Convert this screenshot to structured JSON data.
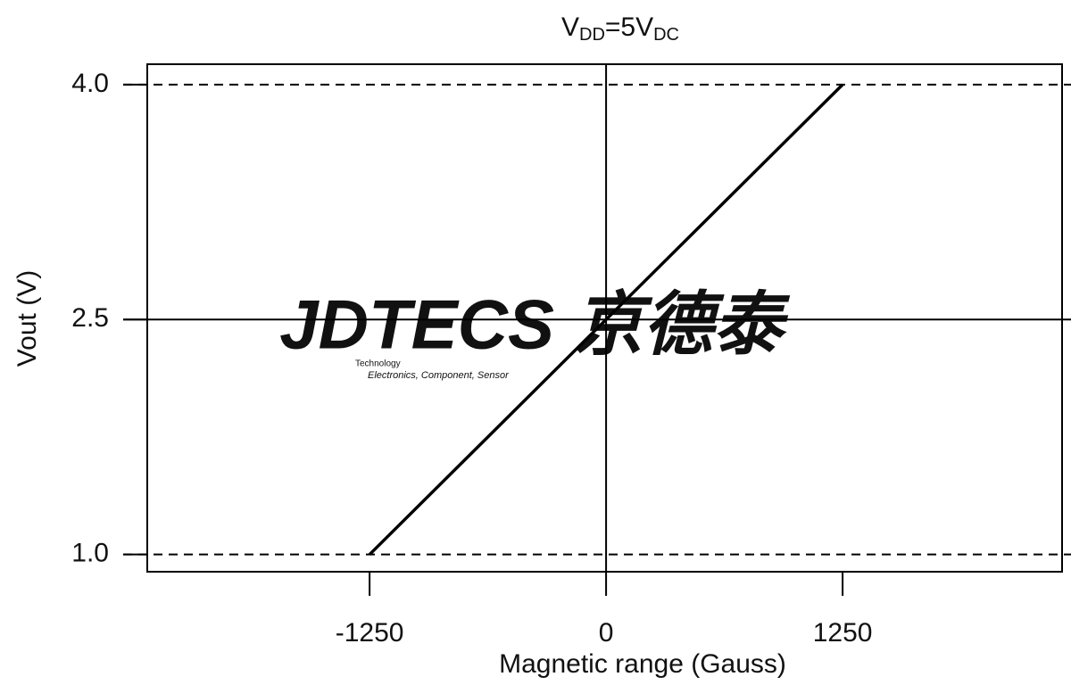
{
  "chart_data": {
    "type": "line",
    "title": [
      {
        "text": "V",
        "sub": false
      },
      {
        "text": "DD",
        "sub": true
      },
      {
        "text": "=5V",
        "sub": false
      },
      {
        "text": "DC",
        "sub": true
      }
    ],
    "x_label": "Magnetic range (Gauss)",
    "y_label": "Vout (V)",
    "x": [
      -1250,
      1250
    ],
    "series": [
      {
        "values": [
          1.0,
          4.0
        ],
        "color": "#000000"
      }
    ],
    "xlim": [
      -2425,
      2410
    ],
    "ylim": [
      0.89,
      4.13
    ],
    "xticks": [
      -1250,
      0,
      1250
    ],
    "yticks": [
      {
        "value": 1.0,
        "label": "1.0"
      },
      {
        "value": 2.5,
        "label": "2.5"
      },
      {
        "value": 4.0,
        "label": "4.0"
      }
    ],
    "reference_lines": {
      "y": [
        {
          "value": 1.0,
          "dashed": true
        },
        {
          "value": 2.5,
          "dashed": false
        },
        {
          "value": 4.0,
          "dashed": true
        }
      ],
      "x": [
        {
          "value": 0,
          "dashed": false
        }
      ]
    },
    "watermark": {
      "text": "JDTECS 京德泰",
      "small": "Technology",
      "tagline": "Electronics, Component, Sensor",
      "color": "#c9d6e8"
    }
  }
}
